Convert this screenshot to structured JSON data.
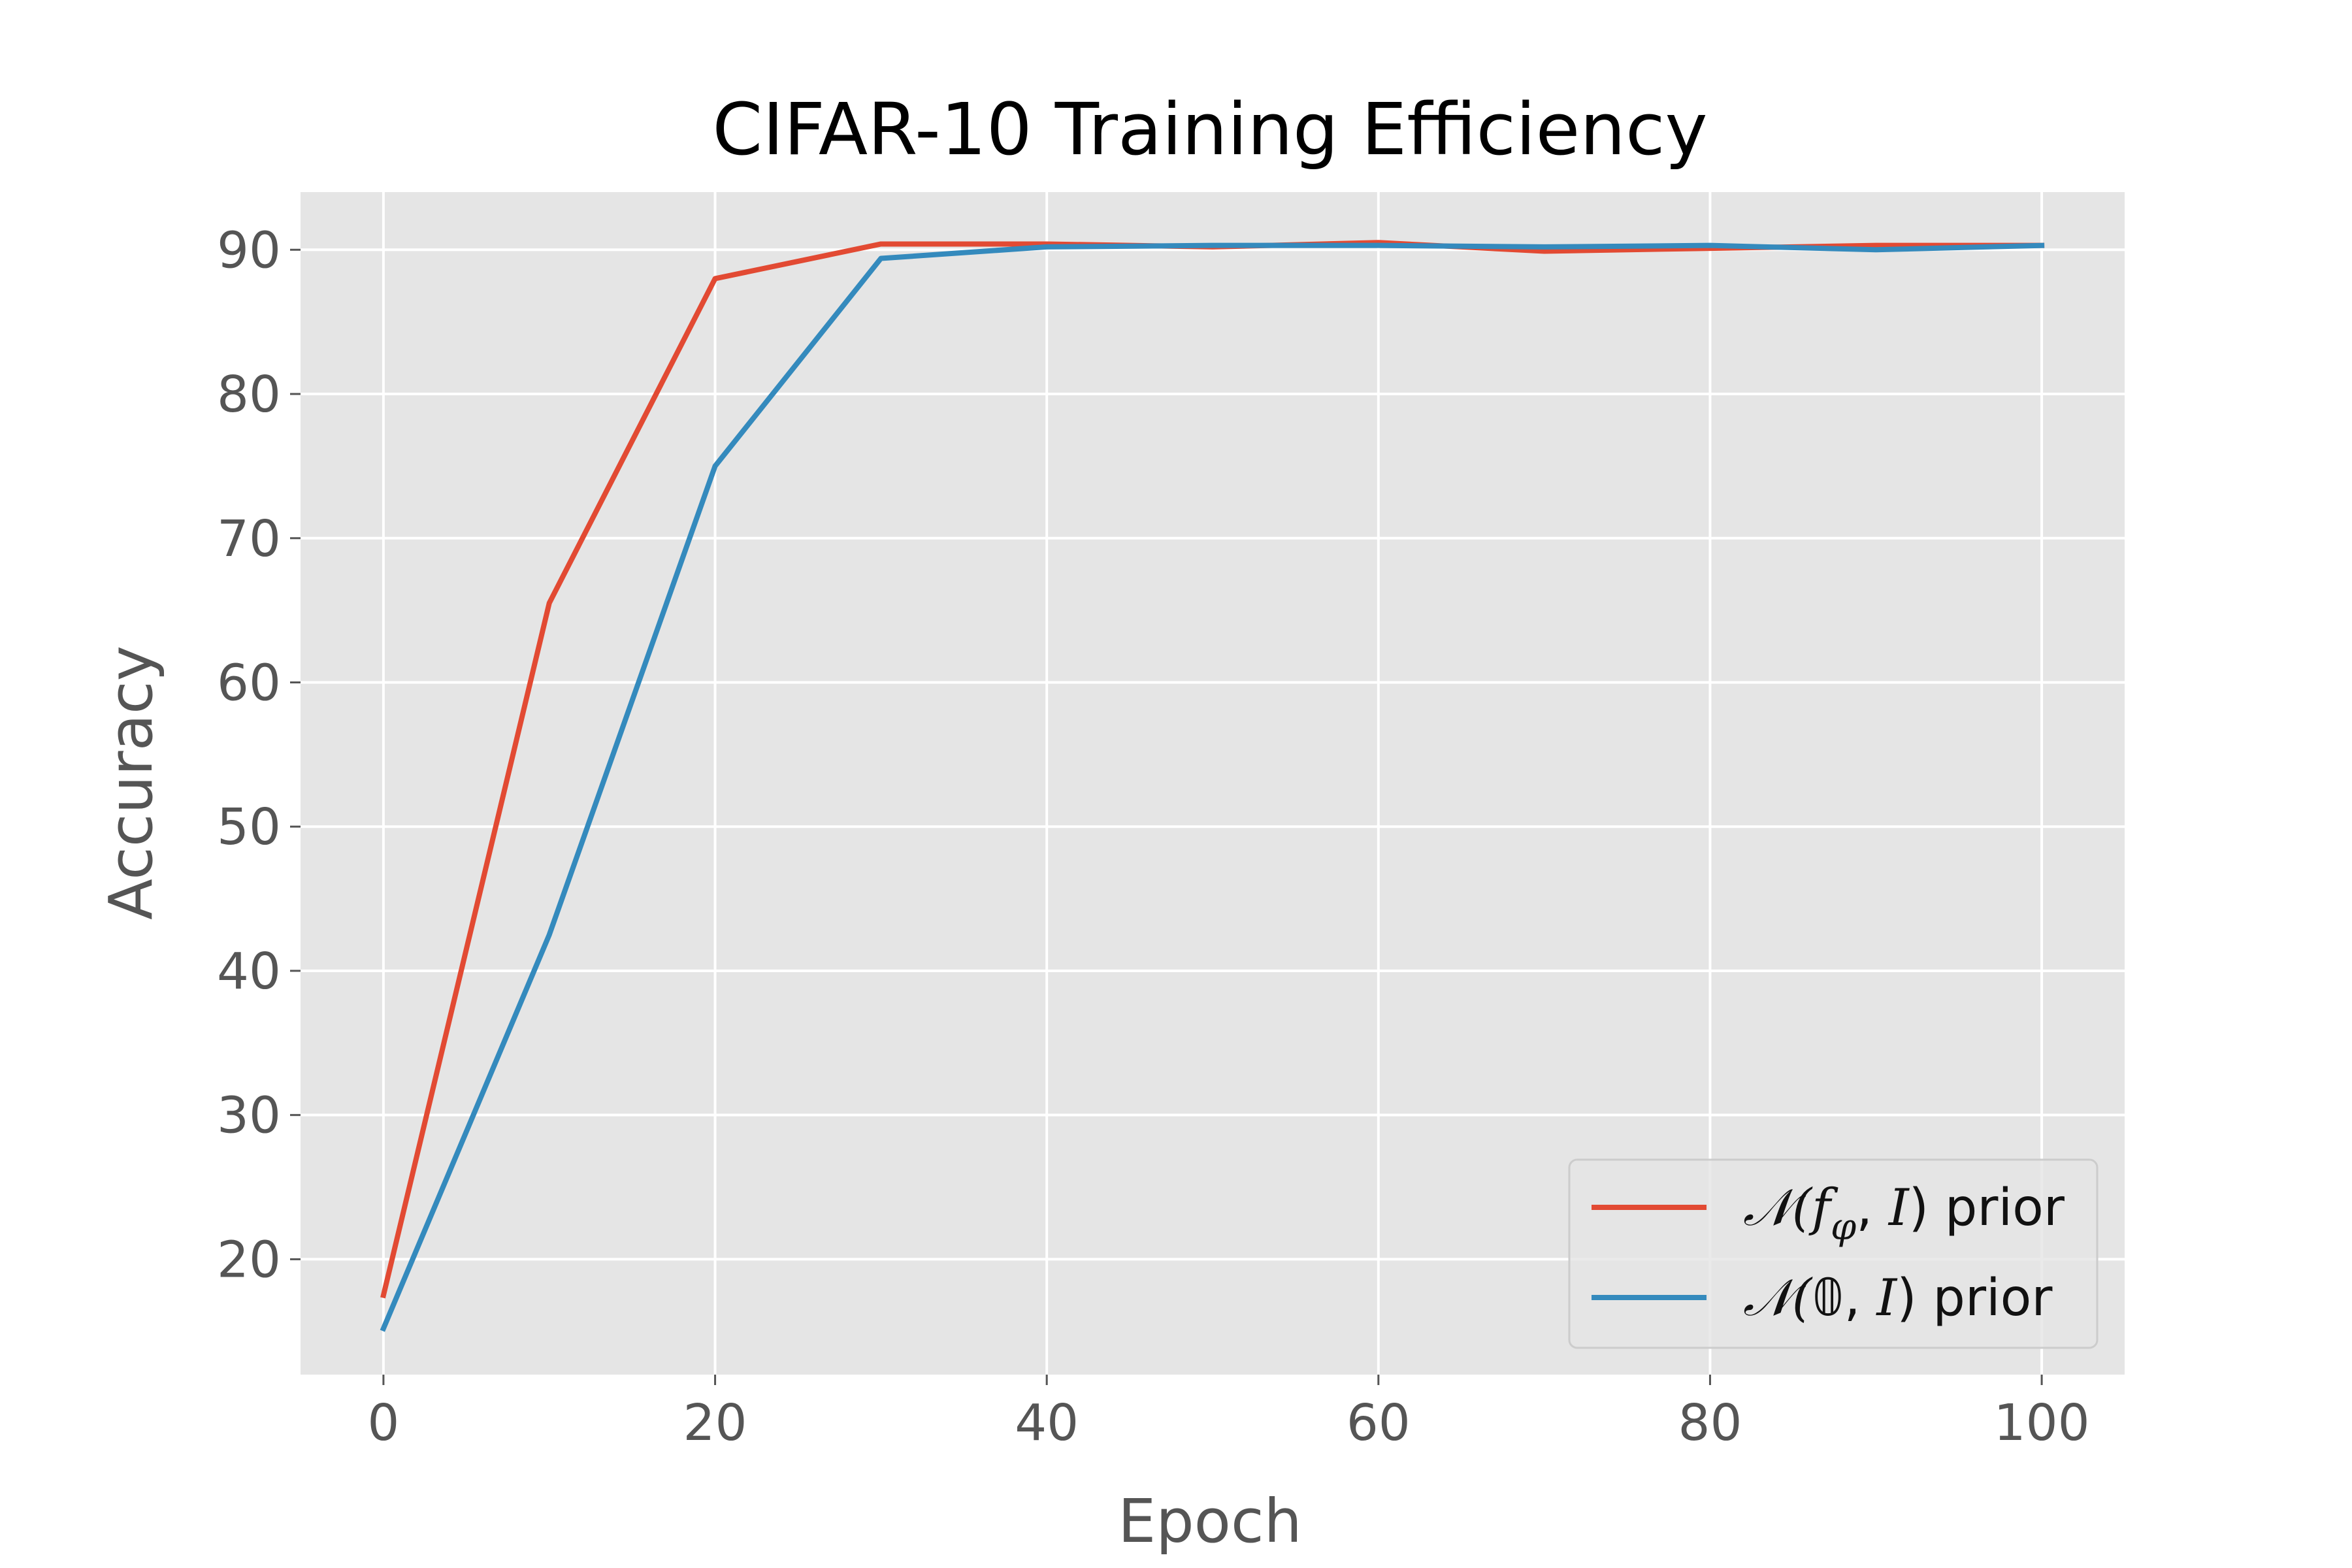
{
  "chart_data": {
    "type": "line",
    "title": "CIFAR-10 Training Efficiency",
    "xlabel": "Epoch",
    "ylabel": "Accuracy",
    "xlim": [
      -5,
      105
    ],
    "ylim": [
      12,
      94
    ],
    "xticks": [
      0,
      20,
      40,
      60,
      80,
      100
    ],
    "yticks": [
      20,
      30,
      40,
      50,
      60,
      70,
      80,
      90
    ],
    "grid": true,
    "legend_position": "lower-right",
    "x": [
      0,
      10,
      20,
      30,
      40,
      50,
      60,
      70,
      80,
      90,
      100
    ],
    "series": [
      {
        "name_parts": [
          "𝒩(",
          "f",
          "φ",
          ", ",
          "I",
          ") prior"
        ],
        "color": "#E24A33",
        "values": [
          17.5,
          65.5,
          88.0,
          90.4,
          90.4,
          90.2,
          90.5,
          89.9,
          90.1,
          90.3,
          90.3
        ]
      },
      {
        "name_parts": [
          "𝒩(",
          "𝟘",
          ", ",
          "I",
          ") prior"
        ],
        "color": "#348ABD",
        "values": [
          15.2,
          42.5,
          75.0,
          89.4,
          90.2,
          90.3,
          90.3,
          90.2,
          90.3,
          90.0,
          90.3
        ]
      }
    ]
  }
}
